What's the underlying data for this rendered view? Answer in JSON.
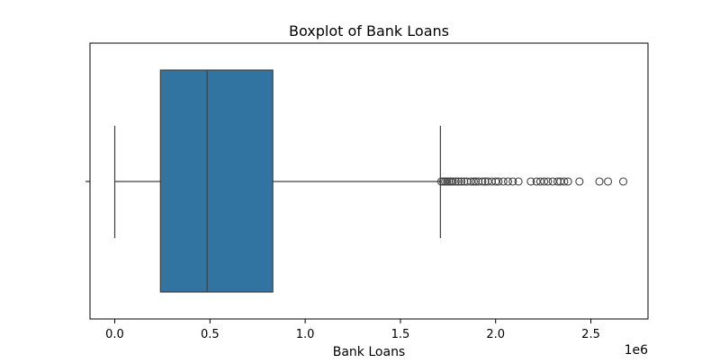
{
  "chart_data": {
    "type": "box",
    "title": "Boxplot of Bank Loans",
    "xlabel": "Bank Loans",
    "ylabel": "",
    "offset_label": "1e6",
    "xlim": [
      -130000,
      2800000
    ],
    "xticks": [
      0,
      500000,
      1000000,
      1500000,
      2000000,
      2500000
    ],
    "xtick_labels": [
      "0.0",
      "0.5",
      "1.0",
      "1.5",
      "2.0",
      "2.5"
    ],
    "box": {
      "whisker_low": 0,
      "q1": 240000,
      "median": 485000,
      "q3": 830000,
      "whisker_high": 1710000
    },
    "outliers": [
      1715000,
      1725000,
      1735000,
      1745000,
      1755000,
      1765000,
      1775000,
      1790000,
      1805000,
      1820000,
      1835000,
      1850000,
      1870000,
      1885000,
      1895000,
      1910000,
      1930000,
      1945000,
      1960000,
      1980000,
      2000000,
      2015000,
      2040000,
      2065000,
      2090000,
      2120000,
      2185000,
      2215000,
      2235000,
      2255000,
      2275000,
      2300000,
      2325000,
      2340000,
      2360000,
      2380000,
      2440000,
      2545000,
      2590000,
      2670000
    ],
    "box_color": "#3274a1",
    "line_color": "#3f3f3f",
    "grid": false
  }
}
